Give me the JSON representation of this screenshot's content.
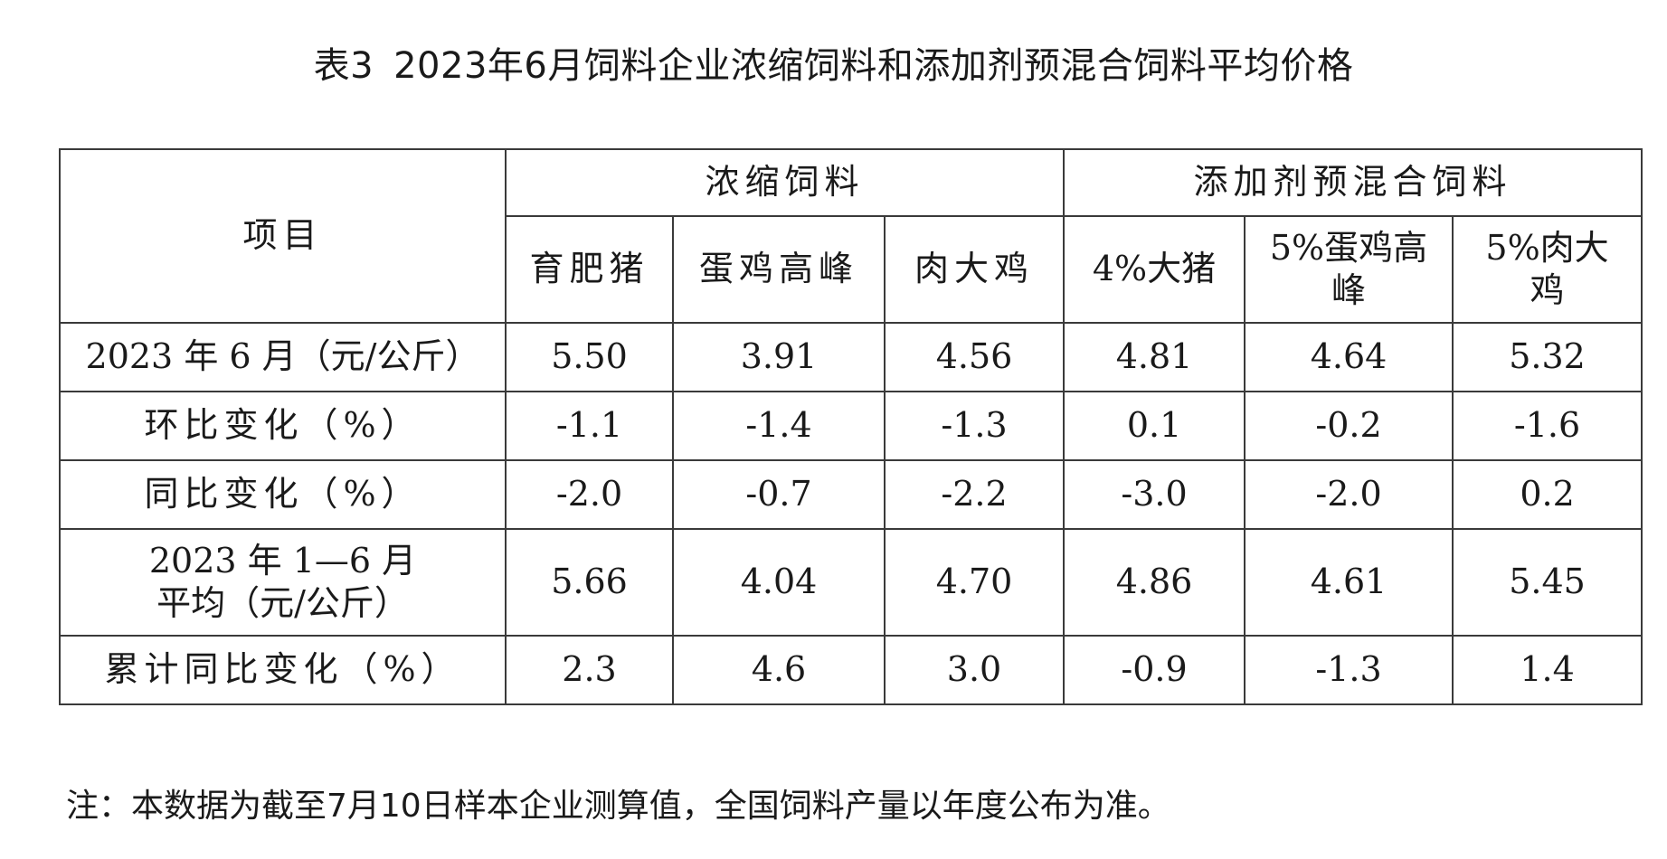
{
  "title": {
    "table_no": "表3",
    "text": "2023年6月饲料企业浓缩饲料和添加剂预混合饲料平均价格"
  },
  "table": {
    "item_header": "项目",
    "groups": [
      {
        "label": "浓缩饲料"
      },
      {
        "label": "添加剂预混合饲料"
      }
    ],
    "columns": [
      "育肥猪",
      "蛋鸡高峰",
      "肉大鸡",
      "4%大猪",
      "5%蛋鸡高峰",
      "5%肉大鸡"
    ],
    "rows": [
      {
        "label": "2023 年 6 月（元/公斤）",
        "values": [
          "5.50",
          "3.91",
          "4.56",
          "4.81",
          "4.64",
          "5.32"
        ]
      },
      {
        "label": "环比变化（%）",
        "values": [
          "-1.1",
          "-1.4",
          "-1.3",
          "0.1",
          "-0.2",
          "-1.6"
        ]
      },
      {
        "label": "同比变化（%）",
        "values": [
          "-2.0",
          "-0.7",
          "-2.2",
          "-3.0",
          "-2.0",
          "0.2"
        ]
      },
      {
        "label": "2023 年 1—6 月平均（元/公斤）",
        "values": [
          "5.66",
          "4.04",
          "4.70",
          "4.86",
          "4.61",
          "5.45"
        ]
      },
      {
        "label": "累计同比变化（%）",
        "values": [
          "2.3",
          "4.6",
          "3.0",
          "-0.9",
          "-1.3",
          "1.4"
        ]
      }
    ]
  },
  "note": "注：本数据为截至7月10日样本企业测算值，全国饲料产量以年度公布为准。"
}
